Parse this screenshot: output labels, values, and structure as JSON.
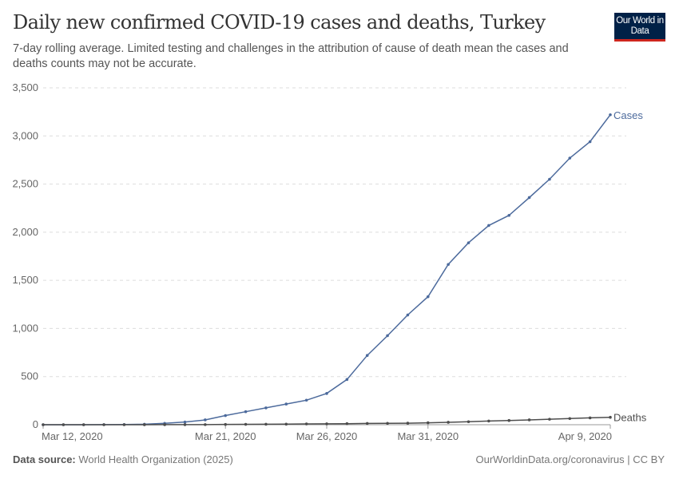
{
  "header": {
    "title": "Daily new confirmed COVID-19 cases and deaths, Turkey",
    "subtitle": "7-day rolling average. Limited testing and challenges in the attribution of cause of death mean the cases and deaths counts may not be accurate.",
    "logo_text": "Our World in Data"
  },
  "footer": {
    "source_label": "Data source:",
    "source_value": "World Health Organization (2025)",
    "link": "OurWorldinData.org/coronavirus | CC BY"
  },
  "chart_data": {
    "type": "line",
    "title": "Daily new confirmed COVID-19 cases and deaths, Turkey",
    "x_start": "2020-03-12",
    "x_end": "2020-04-09",
    "x_tick_labels": [
      "Mar 12, 2020",
      "Mar 21, 2020",
      "Mar 26, 2020",
      "Mar 31, 2020",
      "Apr 9, 2020"
    ],
    "x_tick_dates": [
      "2020-03-12",
      "2020-03-21",
      "2020-03-26",
      "2020-03-31",
      "2020-04-09"
    ],
    "ylim": [
      0,
      3500
    ],
    "y_ticks": [
      0,
      500,
      1000,
      1500,
      2000,
      2500,
      3000,
      3500
    ],
    "y_tick_labels": [
      "0",
      "500",
      "1,000",
      "1,500",
      "2,000",
      "2,500",
      "3,000",
      "3,500"
    ],
    "grid": "horizontal dashed",
    "legend": "inline labels at line ends (right)",
    "series": [
      {
        "name": "Cases",
        "color": "#4c6a9c",
        "values": [
          0,
          0,
          0,
          1,
          2,
          5,
          14,
          28,
          50,
          95,
          135,
          175,
          215,
          255,
          325,
          470,
          720,
          925,
          1140,
          1330,
          1665,
          1890,
          2070,
          2175,
          2360,
          2550,
          2770,
          2940,
          3220
        ]
      },
      {
        "name": "Deaths",
        "color": "#4d4d4d",
        "values": [
          0,
          0,
          0,
          0,
          0,
          0.3,
          0.5,
          0.8,
          1,
          3,
          4,
          5,
          6,
          8,
          9,
          11,
          13,
          14,
          16,
          20,
          25,
          31,
          38,
          44,
          50,
          57,
          64,
          71,
          77
        ]
      }
    ]
  }
}
